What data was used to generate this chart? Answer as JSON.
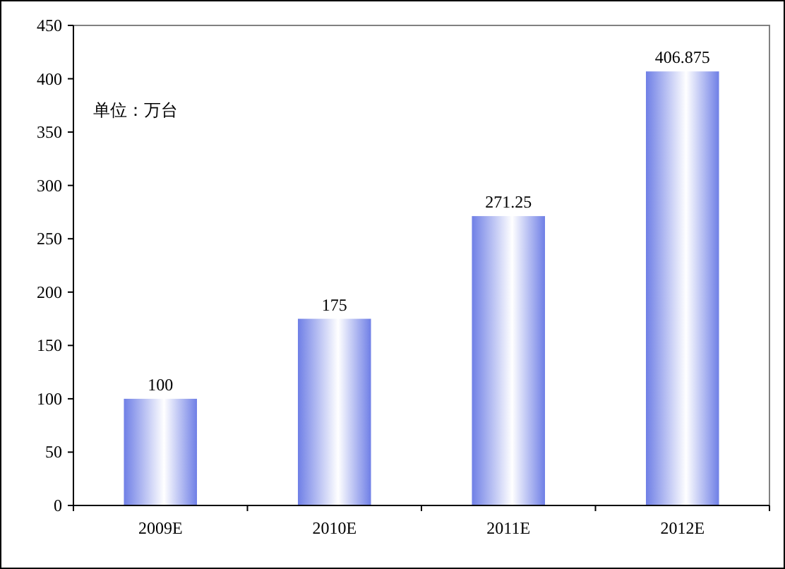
{
  "chart_data": {
    "type": "bar",
    "categories": [
      "2009E",
      "2010E",
      "2011E",
      "2012E"
    ],
    "values": [
      100,
      175,
      271.25,
      406.875
    ],
    "color": "#6f7fe6",
    "ylim": [
      0,
      450
    ],
    "yticks": [
      0,
      50,
      100,
      150,
      200,
      250,
      300,
      350,
      400,
      450
    ],
    "data_labels": true,
    "grid": false,
    "annotations": [
      "单位：万台"
    ]
  }
}
